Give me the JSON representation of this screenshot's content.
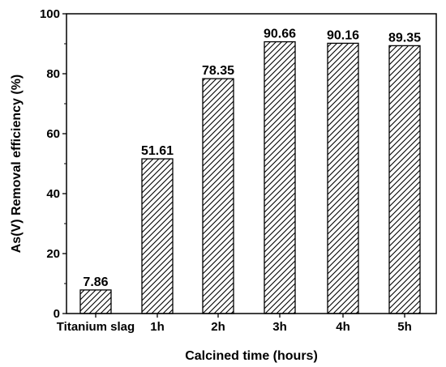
{
  "chart_data": {
    "type": "bar",
    "categories": [
      "Titanium slag",
      "1h",
      "2h",
      "3h",
      "4h",
      "5h"
    ],
    "values": [
      7.86,
      51.61,
      78.35,
      90.66,
      90.16,
      89.35
    ],
    "data_labels": [
      "7.86",
      "51.61",
      "78.35",
      "90.66",
      "90.16",
      "89.35"
    ],
    "xlabel": "Calcined time (hours)",
    "ylabel": "As(V) Removal efficiency (%)",
    "ylim": [
      0,
      100
    ],
    "yticks": [
      "0",
      "20",
      "40",
      "60",
      "80",
      "100"
    ],
    "bar_fill": "diagonal hatch",
    "bar_color": "#000000",
    "grid": false,
    "legend": "none"
  }
}
